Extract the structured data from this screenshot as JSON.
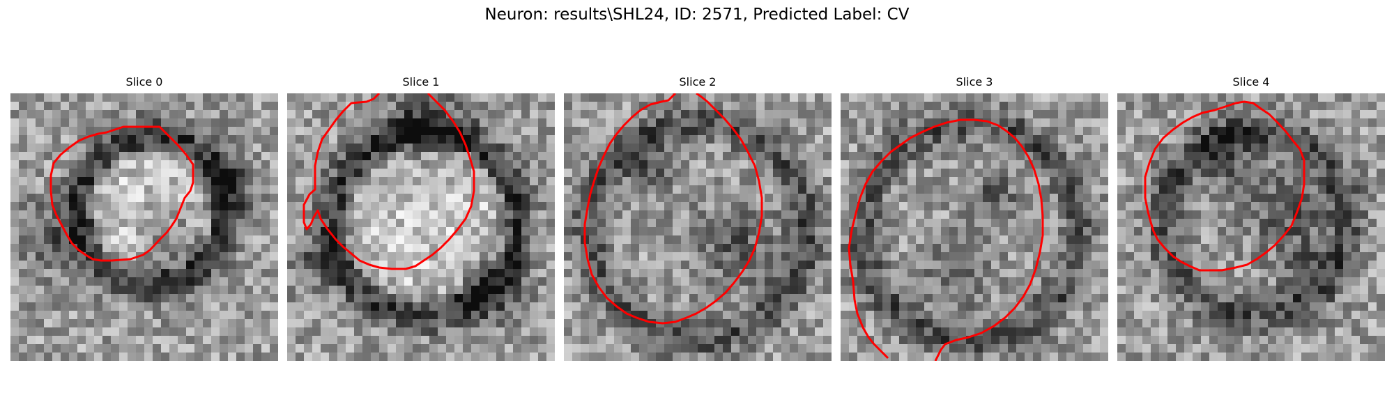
{
  "figure": {
    "title": "Neuron: results\\SHL24, ID: 2571, Predicted Label: CV"
  },
  "panels": [
    {
      "title": "Slice 0"
    },
    {
      "title": "Slice 1"
    },
    {
      "title": "Slice 2"
    },
    {
      "title": "Slice 3"
    },
    {
      "title": "Slice 4"
    }
  ],
  "colors": {
    "contour": "#ff0000",
    "background": "#ffffff"
  }
}
